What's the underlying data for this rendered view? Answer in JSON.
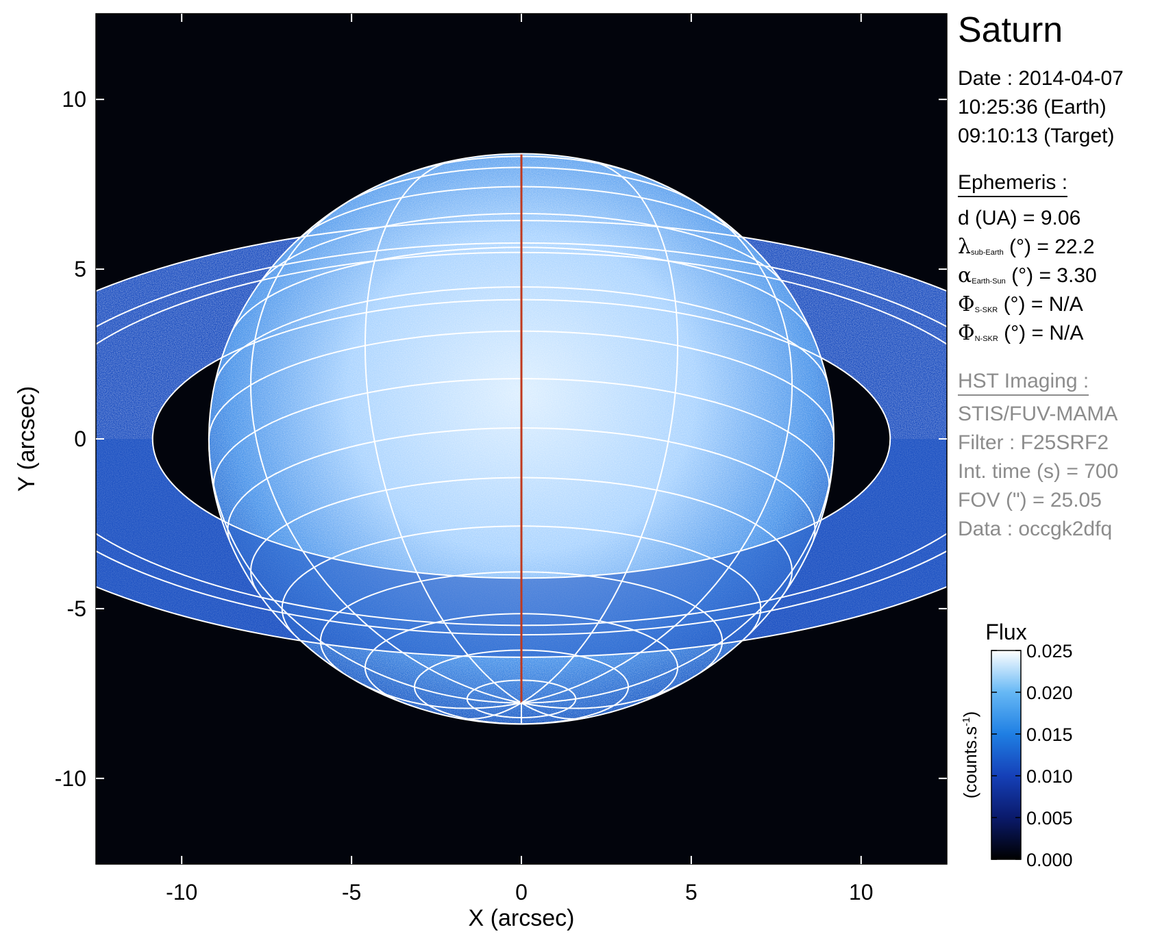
{
  "chart_data": {
    "type": "heatmap",
    "title": "Saturn",
    "xlabel": "X (arcsec)",
    "ylabel": "Y (arcsec)",
    "xlim": [
      -12.525,
      12.525
    ],
    "ylim": [
      -12.525,
      12.525
    ],
    "xticks": [
      -10,
      -5,
      0,
      5,
      10
    ],
    "yticks": [
      -10,
      -5,
      0,
      5,
      10
    ],
    "colorbar": {
      "title": "Flux",
      "label": "(counts.s",
      "label_exp": "-1",
      "label_end": ")",
      "range": [
        0.0,
        0.025
      ],
      "ticks": [
        "0.025",
        "0.020",
        "0.015",
        "0.010",
        "0.005",
        "0.000"
      ]
    },
    "planet_center": [
      0,
      0
    ],
    "polar_radius_arcsec": 8.4,
    "equatorial_radius_arcsec": 9.2,
    "ring_tilt_deg": 22.2,
    "central_meridian_color": "#c0391e",
    "grid_color": "#ffffff"
  },
  "info": {
    "date_line": "Date : 2014-04-07",
    "time_earth": "10:25:36 (Earth)",
    "time_target": "09:10:13 (Target)",
    "ephemeris_header": "Ephemeris :",
    "distance": "d (UA)    = 9.06",
    "lambda_symbol": "λ",
    "lambda_sub": "sub-Earth",
    "lambda_rest": " (°) = 22.2",
    "alpha_symbol": "α",
    "alpha_sub": "Earth-Sun",
    "alpha_rest": " (°) = 3.30",
    "phi_s_symbol": "Φ",
    "phi_s_sub": "S-SKR",
    "phi_s_rest": " (°)   = N/A",
    "phi_n_symbol": "Φ",
    "phi_n_sub": "N-SKR",
    "phi_n_rest": " (°)   = N/A",
    "hst_header": "HST Imaging :",
    "instrument": "STIS/FUV-MAMA",
    "filter": "Filter : F25SRF2",
    "int_time": "Int. time (s) = 700",
    "fov": "FOV (\") = 25.05",
    "dataset": "Data : occgk2dfq"
  }
}
